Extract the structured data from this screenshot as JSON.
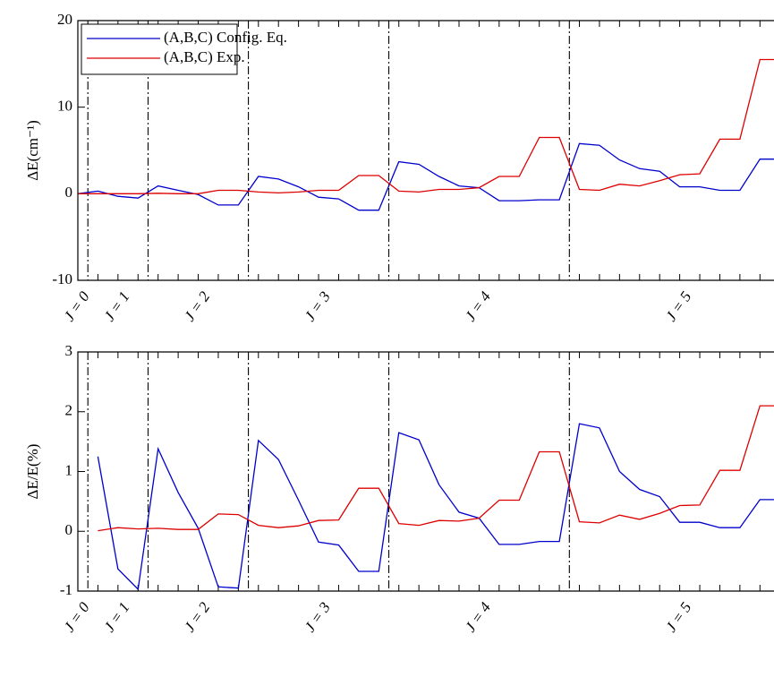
{
  "chart_data": [
    {
      "type": "line",
      "ylabel": "ΔE(cm⁻¹)",
      "x": [
        1,
        2,
        3,
        4,
        5,
        6,
        7,
        8,
        9,
        10,
        11,
        12,
        13,
        14,
        15,
        16,
        17,
        18,
        19,
        20,
        21,
        22,
        23,
        24,
        25,
        26,
        27,
        28,
        29,
        30,
        31,
        32,
        33,
        34,
        35,
        36
      ],
      "xlim": [
        1,
        35.7
      ],
      "xticks": [
        1,
        2,
        3,
        4,
        5,
        6,
        7,
        8,
        9,
        10,
        11,
        12,
        13,
        14,
        15,
        16,
        17,
        18,
        19,
        20,
        21,
        22,
        23,
        24,
        25,
        26,
        27,
        28,
        29,
        30,
        31,
        32,
        33,
        34,
        35
      ],
      "ylim": [
        -10,
        20
      ],
      "yticks": [
        -10,
        0,
        10,
        20
      ],
      "dividers": [
        1.5,
        4.5,
        9.5,
        16.5,
        25.5
      ],
      "group_labels": [
        "J = 0",
        "J = 1",
        "J = 2",
        "J = 3",
        "J = 4",
        "J = 5"
      ],
      "group_x": [
        1,
        3,
        7,
        13,
        21,
        31
      ],
      "legend": "upper left",
      "series": [
        {
          "name": "(A,B,C) Config. Eq.",
          "color": "#0000cc",
          "values": [
            0,
            0.3,
            -0.3,
            -0.5,
            0.9,
            0.4,
            -0.1,
            -1.3,
            -1.3,
            2.0,
            1.7,
            0.8,
            -0.4,
            -0.6,
            -1.9,
            -1.9,
            3.7,
            3.4,
            2.0,
            0.9,
            0.7,
            -0.8,
            -0.8,
            -0.7,
            -0.7,
            5.8,
            5.6,
            3.9,
            2.9,
            2.6,
            0.8,
            0.8,
            0.4,
            0.4,
            4.0,
            4.0
          ]
        },
        {
          "name": "(A,B,C) Exp.",
          "color": "#dd0000",
          "values": [
            0,
            0,
            0,
            0,
            0.05,
            0,
            0,
            0.4,
            0.4,
            0.2,
            0.1,
            0.2,
            0.4,
            0.4,
            2.1,
            2.1,
            0.3,
            0.2,
            0.5,
            0.5,
            0.7,
            2.0,
            2.0,
            6.5,
            6.5,
            0.5,
            0.4,
            1.1,
            0.9,
            1.5,
            2.2,
            2.3,
            6.3,
            6.3,
            15.5,
            15.5
          ]
        }
      ]
    },
    {
      "type": "line",
      "ylabel": "ΔE/E(%)",
      "x": [
        1,
        2,
        3,
        4,
        5,
        6,
        7,
        8,
        9,
        10,
        11,
        12,
        13,
        14,
        15,
        16,
        17,
        18,
        19,
        20,
        21,
        22,
        23,
        24,
        25,
        26,
        27,
        28,
        29,
        30,
        31,
        32,
        33,
        34,
        35,
        36
      ],
      "xlim": [
        1,
        35.7
      ],
      "xticks": [
        1,
        2,
        3,
        4,
        5,
        6,
        7,
        8,
        9,
        10,
        11,
        12,
        13,
        14,
        15,
        16,
        17,
        18,
        19,
        20,
        21,
        22,
        23,
        24,
        25,
        26,
        27,
        28,
        29,
        30,
        31,
        32,
        33,
        34,
        35
      ],
      "ylim": [
        -1,
        3
      ],
      "yticks": [
        -1,
        0,
        1,
        2,
        3
      ],
      "dividers": [
        1.5,
        4.5,
        9.5,
        16.5,
        25.5
      ],
      "group_labels": [
        "J = 0",
        "J = 1",
        "J = 2",
        "J = 3",
        "J = 4",
        "J = 5"
      ],
      "group_x": [
        1,
        3,
        7,
        13,
        21,
        31
      ],
      "series": [
        {
          "color": "#0000cc",
          "values": [
            null,
            1.25,
            -0.63,
            -0.97,
            1.38,
            0.65,
            0.05,
            -0.93,
            -0.95,
            1.52,
            1.2,
            0.52,
            -0.18,
            -0.23,
            -0.67,
            -0.67,
            1.65,
            1.53,
            0.78,
            0.32,
            0.22,
            -0.22,
            -0.22,
            -0.17,
            -0.17,
            1.8,
            1.73,
            1.0,
            0.7,
            0.58,
            0.15,
            0.15,
            0.06,
            0.06,
            0.53,
            0.53
          ]
        },
        {
          "color": "#dd0000",
          "values": [
            null,
            0.01,
            0.06,
            0.04,
            0.05,
            0.03,
            0.03,
            0.29,
            0.28,
            0.1,
            0.06,
            0.09,
            0.18,
            0.19,
            0.72,
            0.72,
            0.13,
            0.1,
            0.18,
            0.17,
            0.22,
            0.52,
            0.52,
            1.33,
            1.33,
            0.16,
            0.14,
            0.27,
            0.2,
            0.3,
            0.43,
            0.44,
            1.02,
            1.02,
            2.1,
            2.1
          ]
        }
      ]
    }
  ]
}
